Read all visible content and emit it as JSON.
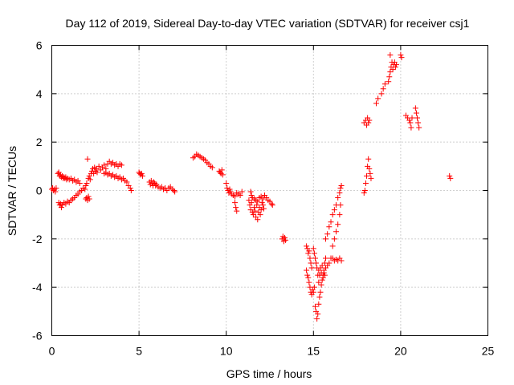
{
  "chart_data": {
    "type": "scatter",
    "title": "Day 112 of 2019, Sidereal Day-to-day VTEC variation (SDTVAR) for receiver csj1",
    "xlabel": "GPS time / hours",
    "ylabel": "SDTVAR / TECUs",
    "xlim": [
      0,
      25
    ],
    "ylim": [
      -6,
      6
    ],
    "xticks": [
      0,
      5,
      10,
      15,
      20,
      25
    ],
    "yticks": [
      -6,
      -4,
      -2,
      0,
      2,
      4,
      6
    ],
    "xtick_labels": [
      "0",
      "5",
      "10",
      "15",
      "20",
      "25"
    ],
    "ytick_labels": [
      "-6",
      "-4",
      "-2",
      "0",
      "2",
      "4",
      "6"
    ],
    "grid": true,
    "marker": "plus",
    "color": "#ff0000",
    "series": [
      {
        "name": "SDTVAR",
        "points": [
          [
            0.0,
            0.05
          ],
          [
            0.05,
            0.1
          ],
          [
            0.1,
            0.0
          ],
          [
            0.15,
            0.05
          ],
          [
            0.2,
            -0.05
          ],
          [
            0.25,
            0.1
          ],
          [
            0.35,
            0.7
          ],
          [
            0.4,
            0.75
          ],
          [
            0.45,
            0.6
          ],
          [
            0.5,
            0.65
          ],
          [
            0.55,
            0.55
          ],
          [
            0.6,
            0.6
          ],
          [
            0.65,
            0.5
          ],
          [
            0.7,
            0.55
          ],
          [
            0.75,
            0.5
          ],
          [
            0.8,
            0.55
          ],
          [
            0.85,
            0.45
          ],
          [
            0.9,
            0.5
          ],
          [
            1.0,
            0.45
          ],
          [
            1.1,
            0.5
          ],
          [
            1.2,
            0.4
          ],
          [
            1.3,
            0.45
          ],
          [
            1.4,
            0.35
          ],
          [
            1.5,
            0.4
          ],
          [
            1.6,
            0.3
          ],
          [
            0.4,
            -0.5
          ],
          [
            0.45,
            -0.6
          ],
          [
            0.5,
            -0.55
          ],
          [
            0.55,
            -0.7
          ],
          [
            0.6,
            -0.6
          ],
          [
            0.7,
            -0.5
          ],
          [
            0.8,
            -0.55
          ],
          [
            0.9,
            -0.45
          ],
          [
            1.0,
            -0.5
          ],
          [
            1.1,
            -0.4
          ],
          [
            1.2,
            -0.35
          ],
          [
            1.3,
            -0.3
          ],
          [
            1.4,
            -0.2
          ],
          [
            1.5,
            -0.15
          ],
          [
            1.6,
            -0.05
          ],
          [
            1.7,
            0.0
          ],
          [
            1.8,
            0.1
          ],
          [
            1.9,
            0.05
          ],
          [
            1.95,
            -0.35
          ],
          [
            2.0,
            -0.3
          ],
          [
            2.05,
            -0.4
          ],
          [
            2.1,
            -0.25
          ],
          [
            2.15,
            -0.35
          ],
          [
            1.95,
            0.2
          ],
          [
            2.0,
            0.3
          ],
          [
            2.05,
            1.3
          ],
          [
            2.1,
            0.5
          ],
          [
            2.15,
            0.6
          ],
          [
            2.2,
            0.45
          ],
          [
            2.25,
            0.7
          ],
          [
            2.3,
            0.8
          ],
          [
            2.35,
            0.9
          ],
          [
            2.4,
            0.7
          ],
          [
            2.45,
            0.95
          ],
          [
            2.5,
            0.8
          ],
          [
            2.55,
            0.9
          ],
          [
            2.6,
            0.75
          ],
          [
            2.7,
            1.0
          ],
          [
            2.8,
            0.85
          ],
          [
            2.9,
            0.95
          ],
          [
            3.0,
            1.05
          ],
          [
            3.1,
            0.9
          ],
          [
            3.2,
            1.1
          ],
          [
            3.3,
            1.2
          ],
          [
            3.4,
            1.1
          ],
          [
            3.5,
            1.15
          ],
          [
            3.6,
            1.05
          ],
          [
            3.7,
            1.1
          ],
          [
            3.8,
            1.0
          ],
          [
            3.9,
            1.1
          ],
          [
            4.0,
            1.05
          ],
          [
            3.0,
            0.7
          ],
          [
            3.1,
            0.75
          ],
          [
            3.2,
            0.65
          ],
          [
            3.3,
            0.7
          ],
          [
            3.4,
            0.6
          ],
          [
            3.5,
            0.65
          ],
          [
            3.6,
            0.55
          ],
          [
            3.7,
            0.6
          ],
          [
            3.8,
            0.5
          ],
          [
            3.9,
            0.55
          ],
          [
            4.0,
            0.45
          ],
          [
            4.1,
            0.5
          ],
          [
            4.2,
            0.4
          ],
          [
            4.3,
            0.35
          ],
          [
            4.4,
            0.2
          ],
          [
            4.5,
            0.1
          ],
          [
            4.55,
            0.0
          ],
          [
            5.0,
            0.75
          ],
          [
            5.05,
            0.7
          ],
          [
            5.1,
            0.65
          ],
          [
            5.15,
            0.7
          ],
          [
            5.2,
            0.6
          ],
          [
            5.6,
            0.35
          ],
          [
            5.65,
            0.25
          ],
          [
            5.7,
            0.4
          ],
          [
            5.75,
            0.3
          ],
          [
            5.8,
            0.2
          ],
          [
            5.85,
            0.35
          ],
          [
            5.9,
            0.3
          ],
          [
            5.95,
            0.2
          ],
          [
            6.0,
            0.25
          ],
          [
            6.1,
            0.15
          ],
          [
            6.2,
            0.1
          ],
          [
            6.3,
            0.15
          ],
          [
            6.4,
            0.05
          ],
          [
            6.5,
            0.1
          ],
          [
            6.6,
            0.0
          ],
          [
            6.7,
            0.1
          ],
          [
            6.8,
            0.15
          ],
          [
            6.9,
            0.05
          ],
          [
            7.0,
            0.0
          ],
          [
            7.05,
            -0.05
          ],
          [
            8.1,
            1.35
          ],
          [
            8.2,
            1.4
          ],
          [
            8.3,
            1.5
          ],
          [
            8.4,
            1.45
          ],
          [
            8.5,
            1.4
          ],
          [
            8.6,
            1.35
          ],
          [
            8.7,
            1.3
          ],
          [
            8.8,
            1.25
          ],
          [
            8.9,
            1.15
          ],
          [
            9.0,
            1.1
          ],
          [
            9.1,
            1.0
          ],
          [
            9.2,
            0.95
          ],
          [
            9.6,
            0.8
          ],
          [
            9.65,
            0.75
          ],
          [
            9.7,
            0.7
          ],
          [
            9.75,
            0.85
          ],
          [
            9.8,
            0.65
          ],
          [
            10.0,
            0.3
          ],
          [
            10.05,
            0.1
          ],
          [
            10.1,
            0.0
          ],
          [
            10.15,
            -0.1
          ],
          [
            10.2,
            0.05
          ],
          [
            10.25,
            -0.05
          ],
          [
            10.3,
            -0.15
          ],
          [
            10.4,
            -0.2
          ],
          [
            10.5,
            -0.25
          ],
          [
            10.6,
            -0.1
          ],
          [
            10.7,
            -0.15
          ],
          [
            10.8,
            -0.2
          ],
          [
            10.9,
            -0.05
          ],
          [
            10.5,
            -0.5
          ],
          [
            10.55,
            -0.7
          ],
          [
            10.6,
            -0.85
          ],
          [
            11.3,
            -0.4
          ],
          [
            11.35,
            -0.6
          ],
          [
            11.4,
            -0.8
          ],
          [
            11.45,
            -0.5
          ],
          [
            11.5,
            -0.9
          ],
          [
            11.55,
            -1.0
          ],
          [
            11.6,
            -0.7
          ],
          [
            11.65,
            -0.85
          ],
          [
            11.7,
            -1.1
          ],
          [
            11.75,
            -0.6
          ],
          [
            11.8,
            -1.2
          ],
          [
            11.85,
            -0.9
          ],
          [
            11.9,
            -0.7
          ],
          [
            11.95,
            -1.0
          ],
          [
            12.0,
            -0.8
          ],
          [
            12.05,
            -0.5
          ],
          [
            12.1,
            -0.6
          ],
          [
            12.15,
            -0.75
          ],
          [
            11.4,
            -0.05
          ],
          [
            11.45,
            -0.2
          ],
          [
            11.5,
            -0.3
          ],
          [
            11.6,
            -0.35
          ],
          [
            11.7,
            -0.4
          ],
          [
            11.8,
            -0.45
          ],
          [
            11.9,
            -0.3
          ],
          [
            12.0,
            -0.25
          ],
          [
            12.1,
            -0.35
          ],
          [
            12.2,
            -0.2
          ],
          [
            12.3,
            -0.3
          ],
          [
            12.4,
            -0.4
          ],
          [
            12.5,
            -0.45
          ],
          [
            12.6,
            -0.55
          ],
          [
            12.65,
            -0.6
          ],
          [
            13.2,
            -2.0
          ],
          [
            13.25,
            -1.9
          ],
          [
            13.3,
            -2.1
          ],
          [
            13.35,
            -1.95
          ],
          [
            13.4,
            -2.05
          ],
          [
            14.6,
            -2.3
          ],
          [
            14.65,
            -2.4
          ],
          [
            14.7,
            -2.6
          ],
          [
            14.75,
            -2.5
          ],
          [
            14.8,
            -2.8
          ],
          [
            14.85,
            -3.0
          ],
          [
            14.9,
            -3.2
          ],
          [
            14.6,
            -3.3
          ],
          [
            14.65,
            -3.5
          ],
          [
            14.7,
            -3.6
          ],
          [
            14.75,
            -3.8
          ],
          [
            14.8,
            -4.0
          ],
          [
            14.85,
            -4.2
          ],
          [
            14.9,
            -4.3
          ],
          [
            14.95,
            -4.1
          ],
          [
            15.0,
            -4.2
          ],
          [
            15.05,
            -4.0
          ],
          [
            15.0,
            -2.4
          ],
          [
            15.05,
            -2.6
          ],
          [
            15.1,
            -2.8
          ],
          [
            15.15,
            -3.0
          ],
          [
            15.2,
            -3.2
          ],
          [
            15.25,
            -3.5
          ],
          [
            15.3,
            -3.8
          ],
          [
            15.1,
            -4.8
          ],
          [
            15.15,
            -5.0
          ],
          [
            15.2,
            -5.3
          ],
          [
            15.25,
            -5.1
          ],
          [
            15.3,
            -4.7
          ],
          [
            15.35,
            -4.4
          ],
          [
            15.4,
            -4.2
          ],
          [
            15.45,
            -3.9
          ],
          [
            15.5,
            -3.7
          ],
          [
            15.55,
            -3.5
          ],
          [
            15.6,
            -3.3
          ],
          [
            15.65,
            -3.0
          ],
          [
            15.7,
            -2.8
          ],
          [
            15.3,
            -3.3
          ],
          [
            15.35,
            -3.5
          ],
          [
            15.4,
            -3.2
          ],
          [
            15.45,
            -3.4
          ],
          [
            15.5,
            -3.1
          ],
          [
            15.55,
            -3.6
          ],
          [
            15.6,
            -3.4
          ],
          [
            15.65,
            -3.5
          ],
          [
            15.7,
            -3.2
          ],
          [
            15.8,
            -3.1
          ],
          [
            15.9,
            -3.0
          ],
          [
            16.0,
            -2.8
          ],
          [
            15.7,
            -2.0
          ],
          [
            15.8,
            -1.8
          ],
          [
            15.9,
            -1.5
          ],
          [
            16.0,
            -1.3
          ],
          [
            16.1,
            -1.0
          ],
          [
            16.2,
            -0.8
          ],
          [
            16.3,
            -0.6
          ],
          [
            16.4,
            -0.3
          ],
          [
            16.5,
            -0.1
          ],
          [
            16.55,
            0.1
          ],
          [
            16.6,
            0.2
          ],
          [
            16.1,
            -2.3
          ],
          [
            16.2,
            -2.0
          ],
          [
            16.3,
            -1.7
          ],
          [
            16.4,
            -1.4
          ],
          [
            16.5,
            -1.0
          ],
          [
            16.55,
            -0.6
          ],
          [
            16.1,
            -2.8
          ],
          [
            16.2,
            -2.9
          ],
          [
            16.3,
            -2.85
          ],
          [
            16.4,
            -2.9
          ],
          [
            16.5,
            -2.8
          ],
          [
            16.6,
            -2.9
          ],
          [
            17.9,
            -0.1
          ],
          [
            17.95,
            0.0
          ],
          [
            18.0,
            0.3
          ],
          [
            18.05,
            0.6
          ],
          [
            18.1,
            1.0
          ],
          [
            18.15,
            1.3
          ],
          [
            18.2,
            0.9
          ],
          [
            18.25,
            0.7
          ],
          [
            18.3,
            0.5
          ],
          [
            17.9,
            2.8
          ],
          [
            18.0,
            2.9
          ],
          [
            18.05,
            2.7
          ],
          [
            18.1,
            3.0
          ],
          [
            18.15,
            2.8
          ],
          [
            18.2,
            2.9
          ],
          [
            18.6,
            3.6
          ],
          [
            18.7,
            3.8
          ],
          [
            18.9,
            4.0
          ],
          [
            19.0,
            4.2
          ],
          [
            19.1,
            4.4
          ],
          [
            19.3,
            4.5
          ],
          [
            19.35,
            4.7
          ],
          [
            19.4,
            4.9
          ],
          [
            19.45,
            5.1
          ],
          [
            19.5,
            5.3
          ],
          [
            19.55,
            5.0
          ],
          [
            19.6,
            5.2
          ],
          [
            19.65,
            5.3
          ],
          [
            19.7,
            5.1
          ],
          [
            19.75,
            5.2
          ],
          [
            19.4,
            5.6
          ],
          [
            20.0,
            5.6
          ],
          [
            20.05,
            5.5
          ],
          [
            20.3,
            3.1
          ],
          [
            20.4,
            3.0
          ],
          [
            20.5,
            2.9
          ],
          [
            20.55,
            2.8
          ],
          [
            20.6,
            2.6
          ],
          [
            20.65,
            3.0
          ],
          [
            20.85,
            3.4
          ],
          [
            20.9,
            3.2
          ],
          [
            20.95,
            3.0
          ],
          [
            21.0,
            2.8
          ],
          [
            21.05,
            2.6
          ],
          [
            22.8,
            0.6
          ],
          [
            22.85,
            0.5
          ]
        ]
      }
    ]
  }
}
